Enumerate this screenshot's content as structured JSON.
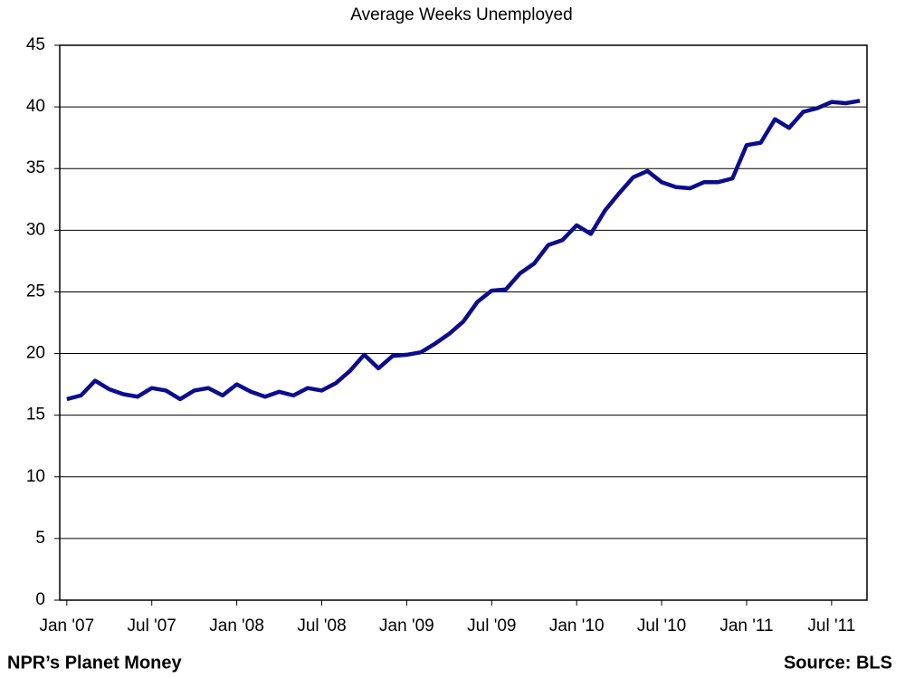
{
  "chart_data": {
    "type": "line",
    "title": "Average Weeks Unemployed",
    "categories": [
      "Jan '07",
      null,
      null,
      null,
      null,
      null,
      "Jul '07",
      null,
      null,
      null,
      null,
      null,
      "Jan '08",
      null,
      null,
      null,
      null,
      null,
      "Jul '08",
      null,
      null,
      null,
      null,
      null,
      "Jan '09",
      null,
      null,
      null,
      null,
      null,
      "Jul '09",
      null,
      null,
      null,
      null,
      null,
      "Jan '10",
      null,
      null,
      null,
      null,
      null,
      "Jul '10",
      null,
      null,
      null,
      null,
      null,
      "Jan '11",
      null,
      null,
      null,
      null,
      null,
      "Jul '11",
      null,
      null
    ],
    "series": [
      {
        "name": "Average Weeks Unemployed",
        "color": "#0c0c8c",
        "values": [
          16.3,
          16.6,
          17.8,
          17.1,
          16.7,
          16.5,
          17.2,
          17.0,
          16.3,
          17.0,
          17.2,
          16.6,
          17.5,
          16.9,
          16.5,
          16.9,
          16.6,
          17.2,
          17.0,
          17.6,
          18.6,
          19.9,
          18.8,
          19.8,
          19.9,
          20.1,
          20.8,
          21.6,
          22.6,
          24.2,
          25.1,
          25.2,
          26.5,
          27.3,
          28.8,
          29.2,
          30.4,
          29.7,
          31.6,
          33.0,
          34.3,
          34.8,
          33.9,
          33.5,
          33.4,
          33.9,
          33.9,
          34.2,
          36.9,
          37.1,
          39.0,
          38.3,
          39.6,
          39.9,
          40.4,
          40.3,
          40.5
        ]
      }
    ],
    "ylim": [
      0,
      45
    ],
    "yticks": [
      0,
      5,
      10,
      15,
      20,
      25,
      30,
      35,
      40,
      45
    ],
    "grid": true,
    "source": "Source: BLS",
    "credit": "NPR’s Planet Money"
  }
}
